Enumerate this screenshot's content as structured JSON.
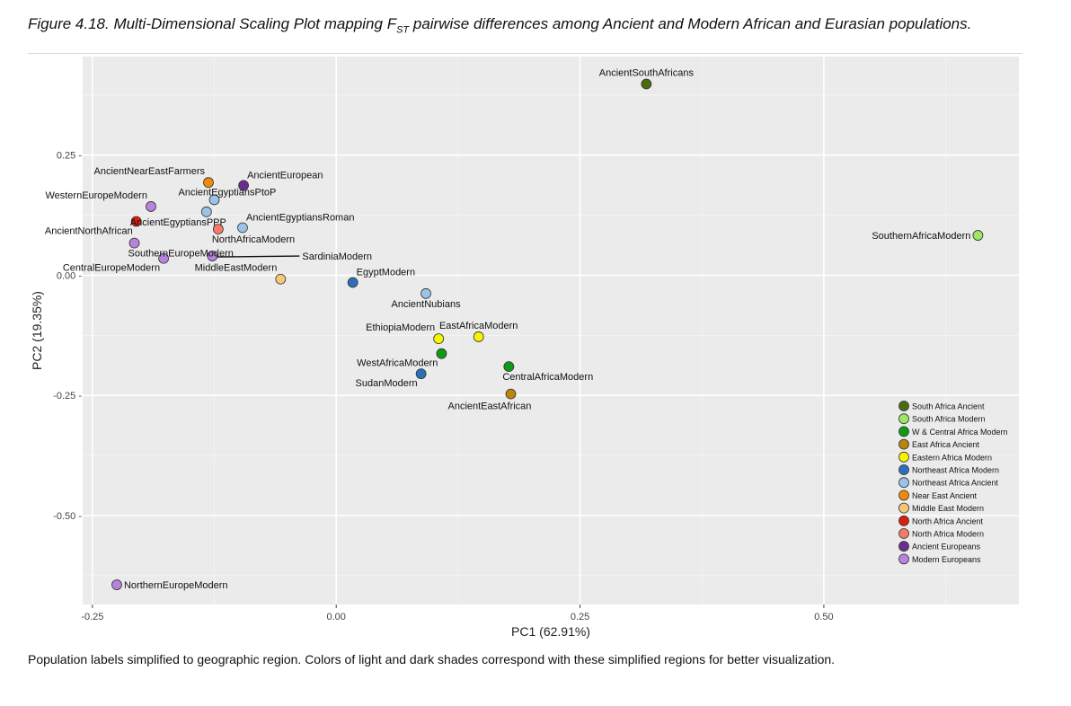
{
  "figure": {
    "title_prefix": "Figure 4.18. Multi-Dimensional Scaling Plot mapping F",
    "title_sub": "ST",
    "title_suffix": " pairwise differences among Ancient and Modern African and Eurasian populations.",
    "caption": "Population labels simplified to geographic region. Colors of light and dark shades correspond with these simplified regions for better visualization."
  },
  "chart_data": {
    "type": "scatter",
    "title": "",
    "xlabel": "PC1 (62.91%)",
    "ylabel": "PC2 (19.35%)",
    "xlim": [
      -0.26,
      0.7
    ],
    "ylim": [
      -0.685,
      0.455
    ],
    "xticks": [
      -0.25,
      0.0,
      0.25,
      0.5
    ],
    "xtick_labels": [
      "-0.25",
      "0.00",
      "0.25",
      "0.50"
    ],
    "yticks": [
      0.25,
      0.0,
      -0.25,
      -0.5
    ],
    "ytick_labels": [
      "0.25 -",
      "0.00 -",
      "-0.25 -",
      "-0.50 -"
    ],
    "grid": true,
    "legend_position": "bottom-right",
    "groups": [
      {
        "name": "South Africa Ancient",
        "color": "#4a6b10"
      },
      {
        "name": "South Africa Modern",
        "color": "#9ee665"
      },
      {
        "name": "W & Central Africa Modern",
        "color": "#0d9b15"
      },
      {
        "name": "East Africa Ancient",
        "color": "#b8860b"
      },
      {
        "name": "Eastern Africa Modern",
        "color": "#f5f500"
      },
      {
        "name": "Northeast Africa Modern",
        "color": "#2c6fb8"
      },
      {
        "name": "Northeast Africa Ancient",
        "color": "#9cc3e6"
      },
      {
        "name": "Near East Ancient",
        "color": "#ee8a0c"
      },
      {
        "name": "Middle East Modern",
        "color": "#f9c57a"
      },
      {
        "name": "North Africa Ancient",
        "color": "#dd1e0d"
      },
      {
        "name": "North Africa Modern",
        "color": "#f47a6a"
      },
      {
        "name": "Ancient Europeans",
        "color": "#6a2e91"
      },
      {
        "name": "Modern Europeans",
        "color": "#b783dc"
      }
    ],
    "points": [
      {
        "label": "AncientSouthAfricans",
        "x": 0.318,
        "y": 0.398,
        "group": 0,
        "label_pos": "above"
      },
      {
        "label": "SouthernAfricaModern",
        "x": 0.658,
        "y": 0.083,
        "group": 1,
        "label_pos": "left"
      },
      {
        "label": "WestAfricaModern",
        "x": 0.108,
        "y": -0.163,
        "group": 2,
        "label_pos": "below-left"
      },
      {
        "label": "CentralAfricaModern",
        "x": 0.177,
        "y": -0.19,
        "group": 2,
        "label_pos": "below-right"
      },
      {
        "label": "AncientEastAfrican",
        "x": 0.179,
        "y": -0.247,
        "group": 3,
        "label_pos": "below-left2"
      },
      {
        "label": "EthiopiaModern",
        "x": 0.105,
        "y": -0.132,
        "group": 4,
        "label_pos": "above-left"
      },
      {
        "label": "EastAfricaModern",
        "x": 0.146,
        "y": -0.128,
        "group": 4,
        "label_pos": "above"
      },
      {
        "label": "EgyptModern",
        "x": 0.017,
        "y": -0.015,
        "group": 5,
        "label_pos": "above-right"
      },
      {
        "label": "SudanModern",
        "x": 0.087,
        "y": -0.205,
        "group": 5,
        "label_pos": "below-left"
      },
      {
        "label": "AncientNubians",
        "x": 0.092,
        "y": -0.038,
        "group": 6,
        "label_pos": "below"
      },
      {
        "label": "AncientEgyptiansPtoP",
        "x": -0.125,
        "y": 0.157,
        "group": 6,
        "label_pos": "above-right2"
      },
      {
        "label": "AncientEgyptiansPPP",
        "x": -0.133,
        "y": 0.132,
        "group": 6,
        "label_pos": "below-left3"
      },
      {
        "label": "AncientEgyptiansRoman",
        "x": -0.096,
        "y": 0.099,
        "group": 6,
        "label_pos": "above-right"
      },
      {
        "label": "AncientNearEastFarmers",
        "x": -0.131,
        "y": 0.193,
        "group": 7,
        "label_pos": "above-left"
      },
      {
        "label": "MiddleEastModern",
        "x": -0.057,
        "y": -0.008,
        "group": 8,
        "label_pos": "above-left"
      },
      {
        "label": "AncientNorthAfrican",
        "x": -0.205,
        "y": 0.112,
        "group": 9,
        "label_pos": "below-left"
      },
      {
        "label": "NorthAfricaModern",
        "x": -0.121,
        "y": 0.096,
        "group": 10,
        "label_pos": "below-right"
      },
      {
        "label": "AncientEuropean",
        "x": -0.095,
        "y": 0.187,
        "group": 11,
        "label_pos": "above-right"
      },
      {
        "label": "WesternEuropeModern",
        "x": -0.19,
        "y": 0.143,
        "group": 12,
        "label_pos": "above-left"
      },
      {
        "label": "SouthernEuropeModern",
        "x": -0.207,
        "y": 0.067,
        "group": 12,
        "label_pos": "below-right"
      },
      {
        "label": "CentralEuropeModern",
        "x": -0.177,
        "y": 0.035,
        "group": 12,
        "label_pos": "below-left"
      },
      {
        "label": "SardiniaModern",
        "x": -0.127,
        "y": 0.04,
        "group": 12,
        "label_pos": "leader-right"
      },
      {
        "label": "NorthernEuropeModern",
        "x": -0.225,
        "y": -0.644,
        "group": 12,
        "label_pos": "right"
      }
    ]
  }
}
